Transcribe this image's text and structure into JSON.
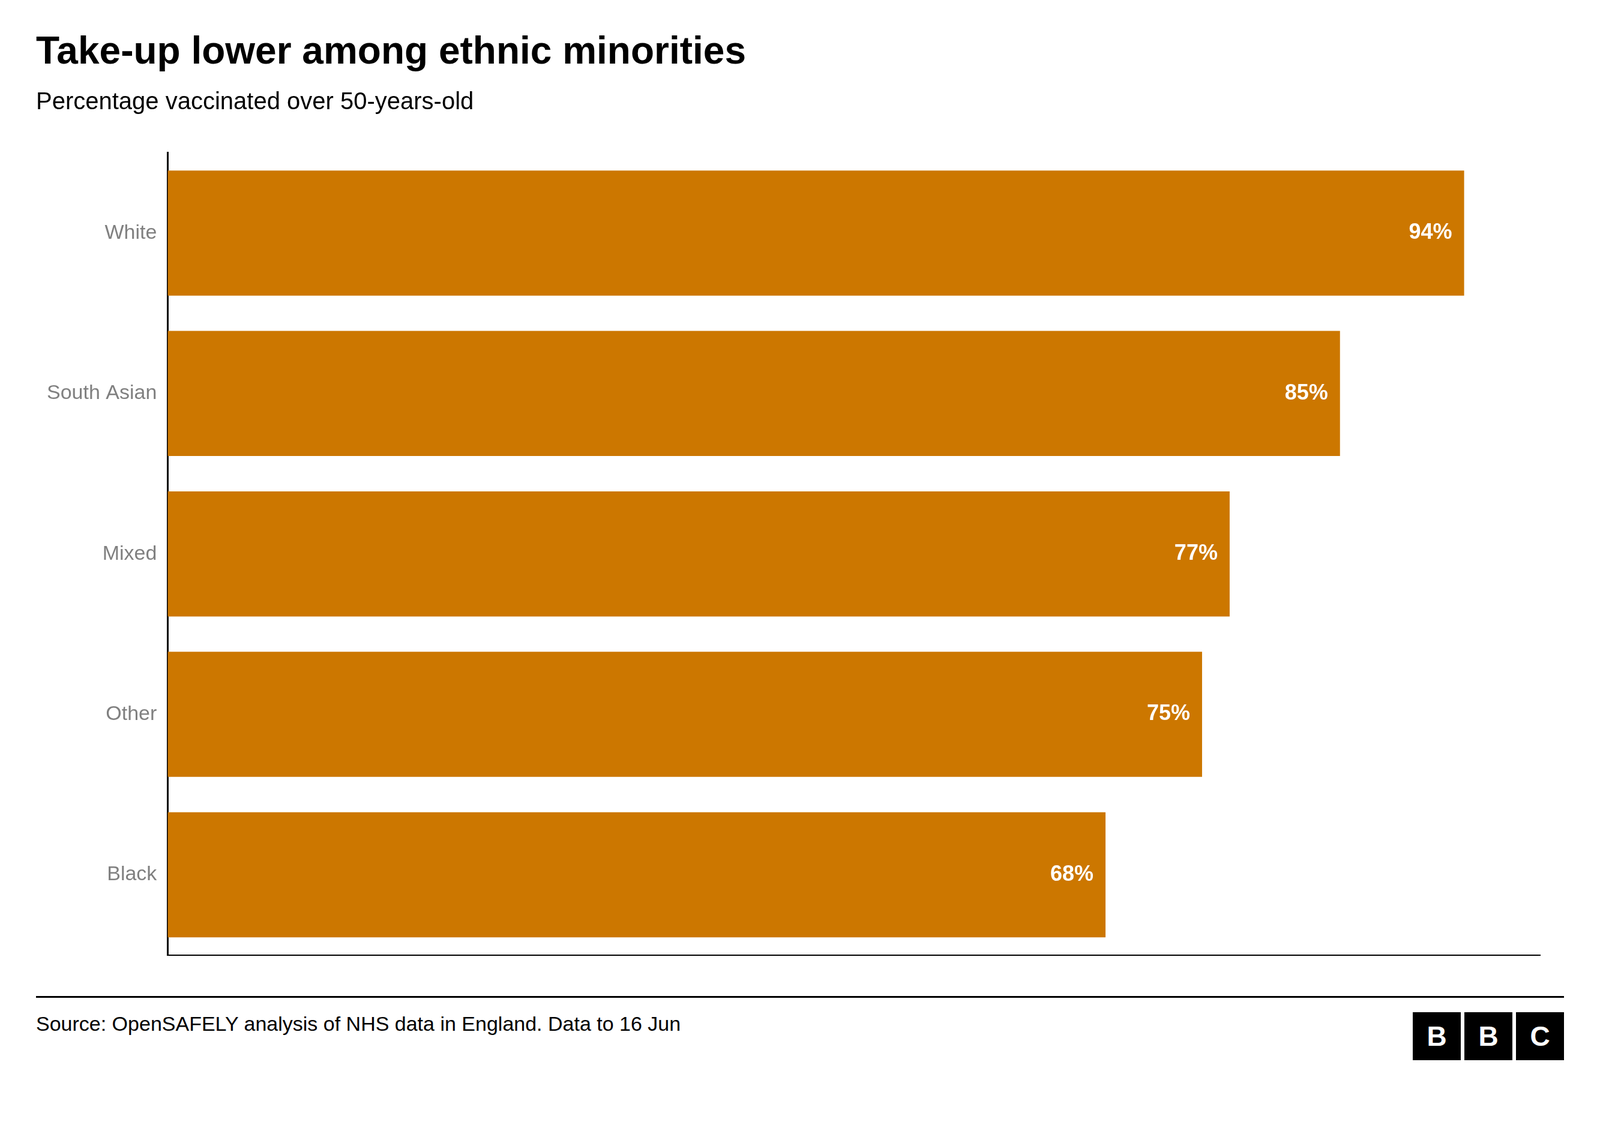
{
  "chart_data": {
    "type": "bar",
    "orientation": "horizontal",
    "title": "Take-up lower among ethnic minorities",
    "subtitle": "Percentage vaccinated over 50-years-old",
    "categories": [
      "White",
      "South Asian",
      "Mixed",
      "Other",
      "Black"
    ],
    "values": [
      94,
      85,
      77,
      75,
      68
    ],
    "value_labels": [
      "94%",
      "85%",
      "77%",
      "75%",
      "68%"
    ],
    "data_labels": true,
    "color": "#CC7700",
    "xlim": [
      0,
      99.5
    ],
    "grid": false,
    "tick_labels": "y",
    "annotations": [
      "Source: OpenSAFELY analysis of NHS data in England. Data to 16 Jun",
      "BBC"
    ]
  }
}
